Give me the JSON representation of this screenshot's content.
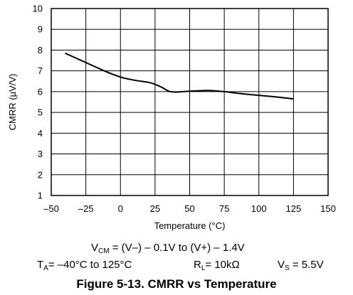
{
  "chart_data": {
    "type": "line",
    "title": "",
    "xlabel": "Temperature (°C)",
    "ylabel": "CMRR (µV/V)",
    "xlim": [
      -50,
      150
    ],
    "ylim": [
      1,
      10
    ],
    "x_ticks": [
      "–50",
      "–25",
      "0",
      "25",
      "50",
      "75",
      "100",
      "125",
      "150"
    ],
    "y_ticks": [
      "1",
      "2",
      "3",
      "4",
      "5",
      "6",
      "7",
      "8",
      "9",
      "10"
    ],
    "x_tick_values": [
      -50,
      -25,
      0,
      25,
      50,
      75,
      100,
      125,
      150
    ],
    "y_tick_values": [
      1,
      2,
      3,
      4,
      5,
      6,
      7,
      8,
      9,
      10
    ],
    "grid": true,
    "series": [
      {
        "x": [
          -40,
          -30,
          -20,
          -10,
          0,
          10,
          20,
          25,
          30,
          35,
          40,
          50,
          60,
          65,
          75,
          85,
          100,
          110,
          125
        ],
        "y": [
          7.85,
          7.55,
          7.25,
          6.95,
          6.7,
          6.55,
          6.45,
          6.35,
          6.2,
          6.02,
          5.98,
          6.02,
          6.05,
          6.05,
          6.0,
          5.92,
          5.82,
          5.76,
          5.65
        ]
      }
    ]
  },
  "conditions": {
    "vcm": {
      "sym": "V",
      "sub": "CM",
      "rest": " = (V–) – 0.1V to (V+) – 1.4V"
    },
    "ta": {
      "sym": "T",
      "sub": "A",
      "rest": "= –40°C to 125°C"
    },
    "rl": {
      "sym": "R",
      "sub": "L",
      "rest": "= 10kΩ"
    },
    "vs": {
      "sym": "V",
      "sub": "S",
      "rest": " = 5.5V"
    }
  },
  "caption": "Figure 5-13. CMRR vs Temperature",
  "colors": {
    "line": "#000000",
    "grid": "#000000",
    "background": "#ffffff"
  }
}
